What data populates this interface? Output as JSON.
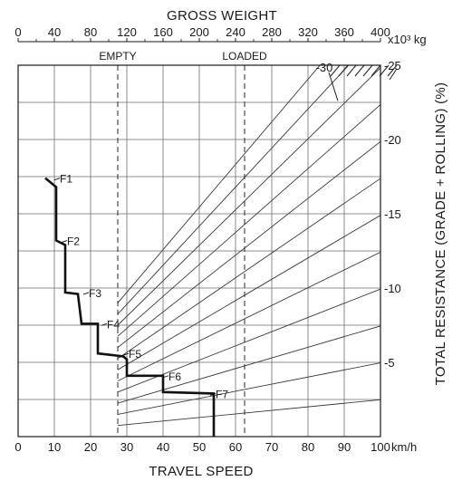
{
  "chart_data": {
    "type": "line",
    "title": "",
    "top_axis": {
      "label": "GROSS WEIGHT",
      "unit": "x10³ kg",
      "range": [
        0,
        400
      ],
      "ticks": [
        "0",
        "40",
        "80",
        "120",
        "160",
        "200",
        "240",
        "280",
        "320",
        "360",
        "400"
      ],
      "markers": [
        {
          "label": "EMPTY",
          "value": 110
        },
        {
          "label": "LOADED",
          "value": 250
        }
      ]
    },
    "bottom_axis": {
      "label": "TRAVEL SPEED",
      "unit": "km/h",
      "range": [
        0,
        100
      ],
      "ticks": [
        "0",
        "10",
        "20",
        "30",
        "40",
        "50",
        "60",
        "70",
        "80",
        "90",
        "100"
      ]
    },
    "right_axis": {
      "label": "TOTAL RESISTANCE (GRADE + ROLLING)  (%)",
      "range": [
        0,
        25
      ],
      "ticks": [
        {
          "value": 5,
          "label": "-5"
        },
        {
          "value": 10,
          "label": "-10"
        },
        {
          "value": 15,
          "label": "-15"
        },
        {
          "value": 20,
          "label": "-20"
        },
        {
          "value": 25,
          "label": "-25"
        }
      ]
    },
    "resistance_line_max_label": "-30",
    "resistance_lines": [
      2.5,
      5,
      7.5,
      10,
      12.5,
      15,
      17.5,
      20,
      22.5,
      25,
      27.5,
      30
    ],
    "gears": [
      {
        "name": "F1",
        "x": 11,
        "y": 17.4
      },
      {
        "name": "F2",
        "x": 13,
        "y": 13.2
      },
      {
        "name": "F3",
        "x": 19,
        "y": 9.7
      },
      {
        "name": "F4",
        "x": 24,
        "y": 7.6
      },
      {
        "name": "F5",
        "x": 30,
        "y": 5.6
      },
      {
        "name": "F6",
        "x": 41,
        "y": 4.1
      },
      {
        "name": "F7",
        "x": 54,
        "y": 2.9
      }
    ],
    "retarder_curve": [
      [
        7.5,
        17.4
      ],
      [
        10.5,
        16.8
      ],
      [
        10.5,
        13.2
      ],
      [
        13,
        12.9
      ],
      [
        13,
        9.7
      ],
      [
        16.5,
        9.6
      ],
      [
        17.5,
        7.6
      ],
      [
        22,
        7.6
      ],
      [
        22,
        5.6
      ],
      [
        29,
        5.4
      ],
      [
        30,
        5.2
      ],
      [
        30,
        4.1
      ],
      [
        40,
        4.1
      ],
      [
        40,
        3.0
      ],
      [
        54,
        2.9
      ],
      [
        54,
        0
      ]
    ],
    "grid": true
  }
}
